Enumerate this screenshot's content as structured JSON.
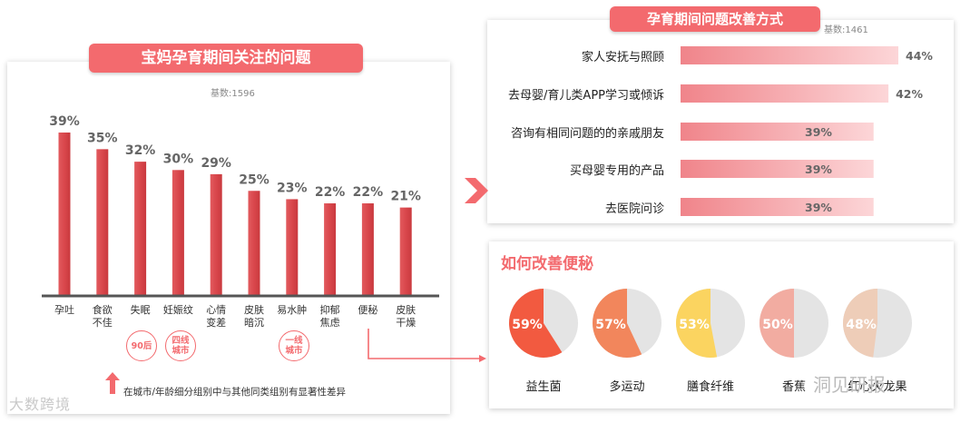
{
  "left": {
    "title": "宝妈孕育期间关注的问题",
    "base": "基数:1596",
    "badges": [
      {
        "text": "90后"
      },
      {
        "text": "四线\n城市"
      },
      {
        "text": "一线\n城市"
      }
    ],
    "footnote": "在城市/年龄细分组别中与其他同类组别有显著性差异"
  },
  "right_top": {
    "title": "孕育期间问题改善方式",
    "base": "基数:1461"
  },
  "right_bottom": {
    "title": "如何改善便秘"
  },
  "watermarks": {
    "left": "大数跨境",
    "right": "洞见研报"
  },
  "colors": {
    "accent": "#f36a6e",
    "bar_dark": "#d94f53",
    "pie_rest": "#e4e4e4"
  },
  "chart_data": [
    {
      "type": "bar",
      "title": "宝妈孕育期间关注的问题",
      "categories": [
        "孕吐",
        "食欲\n不佳",
        "失眠",
        "妊娠纹",
        "心情\n变差",
        "皮肤\n暗沉",
        "易水肿",
        "抑郁\n焦虑",
        "便秘",
        "皮肤\n干燥"
      ],
      "values": [
        39,
        35,
        32,
        30,
        29,
        25,
        23,
        22,
        22,
        21
      ],
      "value_labels": [
        "39%",
        "35%",
        "32%",
        "30%",
        "29%",
        "25%",
        "23%",
        "22%",
        "22%",
        "21%"
      ],
      "ylim": [
        0,
        40
      ]
    },
    {
      "type": "bar",
      "orientation": "horizontal",
      "title": "孕育期间问题改善方式",
      "categories": [
        "家人安抚与照顾",
        "去母婴/育儿类APP学习或倾诉",
        "咨询有相同问题的的亲戚朋友",
        "买母婴专用的产品",
        "去医院问诊"
      ],
      "values": [
        44,
        42,
        39,
        39,
        39
      ],
      "value_labels": [
        "44%",
        "42%",
        "39%",
        "39%",
        "39%"
      ]
    },
    {
      "type": "pie",
      "title": "如何改善便秘",
      "categories": [
        "益生菌",
        "多运动",
        "膳食纤维",
        "香蕉",
        "红心火龙果"
      ],
      "values": [
        59,
        57,
        53,
        50,
        48
      ],
      "value_labels": [
        "59%",
        "57%",
        "53%",
        "50%",
        "48%"
      ],
      "colors": [
        "#f25a40",
        "#f2865c",
        "#fbd460",
        "#f2aca1",
        "#eecdb8"
      ]
    }
  ]
}
